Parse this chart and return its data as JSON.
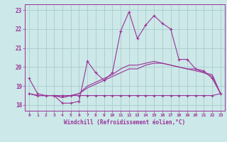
{
  "xlabel": "Windchill (Refroidissement éolien,°C)",
  "bg_color": "#cce8e8",
  "grid_color": "#aacccc",
  "line_color": "#993399",
  "ylim": [
    17.7,
    23.3
  ],
  "xlim": [
    -0.5,
    23.5
  ],
  "yticks": [
    18,
    19,
    20,
    21,
    22,
    23
  ],
  "xticks": [
    0,
    1,
    2,
    3,
    4,
    5,
    6,
    7,
    8,
    9,
    10,
    11,
    12,
    13,
    14,
    15,
    16,
    17,
    18,
    19,
    20,
    21,
    22,
    23
  ],
  "line1_x": [
    0,
    1,
    2,
    3,
    4,
    5,
    6,
    7,
    8,
    9,
    10,
    11,
    12,
    13,
    14,
    15,
    16,
    17,
    18,
    19,
    20,
    21,
    22,
    23
  ],
  "line1_y": [
    19.4,
    18.6,
    18.5,
    18.5,
    18.1,
    18.1,
    18.2,
    20.3,
    19.7,
    19.3,
    19.7,
    21.9,
    22.9,
    21.5,
    22.2,
    22.7,
    22.3,
    22.0,
    20.4,
    20.4,
    19.9,
    19.8,
    19.4,
    18.6
  ],
  "line2_x": [
    0,
    1,
    2,
    3,
    4,
    5,
    6,
    7,
    8,
    9,
    10,
    11,
    12,
    13,
    14,
    15,
    16,
    17,
    18,
    19,
    20,
    21,
    22,
    23
  ],
  "line2_y": [
    18.6,
    18.5,
    18.5,
    18.5,
    18.5,
    18.5,
    18.5,
    18.5,
    18.5,
    18.5,
    18.5,
    18.5,
    18.5,
    18.5,
    18.5,
    18.5,
    18.5,
    18.5,
    18.5,
    18.5,
    18.5,
    18.5,
    18.5,
    18.6
  ],
  "line3_x": [
    0,
    1,
    2,
    3,
    4,
    5,
    6,
    7,
    8,
    9,
    10,
    11,
    12,
    13,
    14,
    15,
    16,
    17,
    18,
    19,
    20,
    21,
    22,
    23
  ],
  "line3_y": [
    18.6,
    18.5,
    18.5,
    18.5,
    18.4,
    18.5,
    18.6,
    18.9,
    19.1,
    19.3,
    19.5,
    19.7,
    19.9,
    19.9,
    20.1,
    20.2,
    20.2,
    20.1,
    20.0,
    19.9,
    19.9,
    19.7,
    19.6,
    18.6
  ],
  "line4_x": [
    0,
    1,
    2,
    3,
    4,
    5,
    6,
    7,
    8,
    9,
    10,
    11,
    12,
    13,
    14,
    15,
    16,
    17,
    18,
    19,
    20,
    21,
    22,
    23
  ],
  "line4_y": [
    18.6,
    18.5,
    18.5,
    18.5,
    18.4,
    18.5,
    18.6,
    19.0,
    19.2,
    19.4,
    19.6,
    19.9,
    20.1,
    20.1,
    20.2,
    20.3,
    20.2,
    20.1,
    20.0,
    19.9,
    19.8,
    19.7,
    19.5,
    18.6
  ]
}
